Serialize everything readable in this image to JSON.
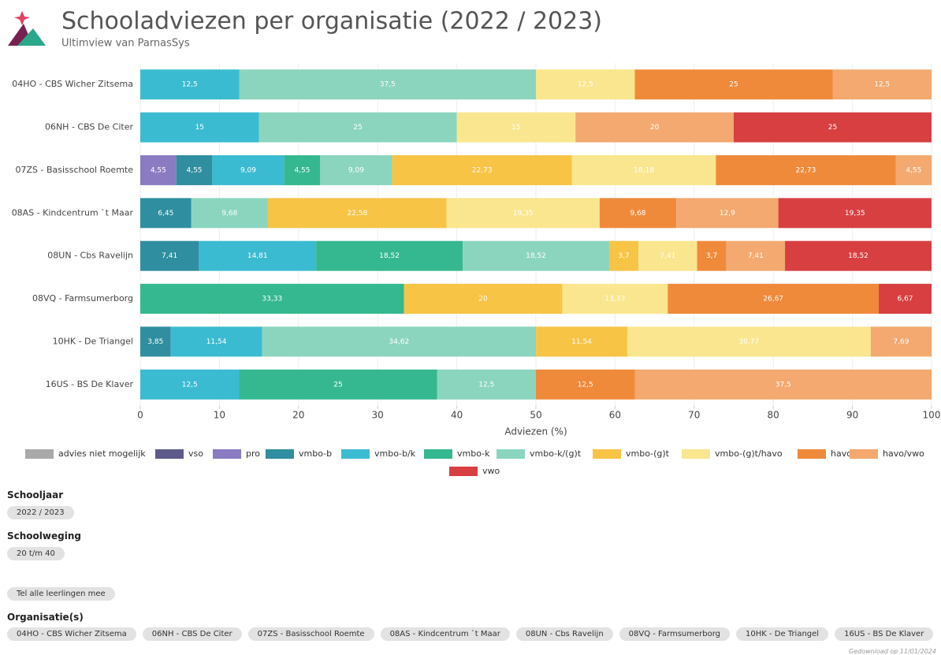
{
  "chart_data": {
    "type": "stacked-bar-horizontal",
    "title": "Schooladviezen per organisatie (2022 / 2023)",
    "subtitle": "Ultimview van ParnasSys",
    "x_label": "Adviezen (%)",
    "categories": [
      "04HO - CBS Wicher Zitsema",
      "06NH - CBS De Citer",
      "07ZS - Basisschool Roemte",
      "08AS - Kindcentrum `t Maar",
      "08UN - Cbs Ravelijn",
      "08VQ - Farmsumerborg",
      "10HK - De Triangel",
      "16US - BS De Klaver"
    ],
    "xlim": [
      0,
      100
    ],
    "xticks": [
      0,
      10,
      20,
      30,
      40,
      50,
      60,
      70,
      80,
      90,
      100
    ],
    "grid": true,
    "series": [
      {
        "name": "advies niet mogelijk",
        "color": "#a9a9a9",
        "values": [
          null,
          null,
          null,
          null,
          null,
          null,
          null,
          null
        ],
        "value_labels": [
          null,
          null,
          null,
          null,
          null,
          null,
          null,
          null
        ]
      },
      {
        "name": "vso",
        "color": "#5e5a8c",
        "values": [
          null,
          null,
          null,
          null,
          null,
          null,
          null,
          null
        ],
        "value_labels": [
          null,
          null,
          null,
          null,
          null,
          null,
          null,
          null
        ]
      },
      {
        "name": "pro",
        "color": "#8a7bc2",
        "values": [
          null,
          null,
          4.55,
          null,
          null,
          null,
          null,
          null
        ],
        "value_labels": [
          null,
          null,
          "4,55",
          null,
          null,
          null,
          null,
          null
        ]
      },
      {
        "name": "vmbo-b",
        "color": "#2f8e9f",
        "values": [
          null,
          null,
          4.55,
          6.45,
          7.41,
          null,
          3.85,
          null
        ],
        "value_labels": [
          null,
          null,
          "4,55",
          "6,45",
          "7,41",
          null,
          "3,85",
          null
        ]
      },
      {
        "name": "vmbo-b/k",
        "color": "#3bbbd1",
        "values": [
          12.5,
          15,
          9.09,
          null,
          14.81,
          null,
          11.54,
          12.5
        ],
        "value_labels": [
          "12,5",
          "15",
          "9,09",
          null,
          "14,81",
          null,
          "11,54",
          "12,5"
        ]
      },
      {
        "name": "vmbo-k",
        "color": "#35b88f",
        "values": [
          null,
          null,
          4.55,
          null,
          18.52,
          33.33,
          null,
          25
        ],
        "value_labels": [
          null,
          null,
          "4,55",
          null,
          "18,52",
          "33,33",
          null,
          "25"
        ]
      },
      {
        "name": "vmbo-k/(g)t",
        "color": "#8bd5bf",
        "values": [
          37.5,
          25,
          9.09,
          9.68,
          18.52,
          null,
          34.62,
          12.5
        ],
        "value_labels": [
          "37,5",
          "25",
          "9,09",
          "9,68",
          "18,52",
          null,
          "34,62",
          "12,5"
        ]
      },
      {
        "name": "vmbo-(g)t",
        "color": "#f7c445",
        "values": [
          null,
          null,
          22.73,
          22.58,
          3.7,
          20,
          11.54,
          null
        ],
        "value_labels": [
          null,
          null,
          "22,73",
          "22,58",
          "3,7",
          "20",
          "11,54",
          null
        ]
      },
      {
        "name": "vmbo-(g)t/havo",
        "color": "#f9e68e",
        "values": [
          12.5,
          15,
          18.18,
          19.35,
          7.41,
          13.33,
          30.77,
          null
        ],
        "value_labels": [
          "12,5",
          "15",
          "18,18",
          "19,35",
          "7,41",
          "13,33",
          "30,77",
          null
        ]
      },
      {
        "name": "havo",
        "color": "#f08a3b",
        "values": [
          25,
          null,
          22.73,
          9.68,
          3.7,
          26.67,
          null,
          12.5
        ],
        "value_labels": [
          "25",
          null,
          "22,73",
          "9,68",
          "3,7",
          "26,67",
          null,
          "12,5"
        ]
      },
      {
        "name": "havo/vwo",
        "color": "#f3a96f",
        "values": [
          12.5,
          20,
          4.55,
          12.9,
          7.41,
          null,
          7.69,
          37.5
        ],
        "value_labels": [
          "12,5",
          "20",
          "4,55",
          "12,9",
          "7,41",
          null,
          "7,69",
          "37,5"
        ]
      },
      {
        "name": "vwo",
        "color": "#d83f41",
        "values": [
          null,
          25,
          null,
          19.35,
          18.52,
          6.67,
          null,
          null
        ],
        "value_labels": [
          null,
          "25",
          null,
          "19,35",
          "18,52",
          "6,67",
          null,
          null
        ]
      }
    ]
  },
  "filters": {
    "schooljaar": {
      "label": "Schooljaar",
      "value": "2022 / 2023"
    },
    "schoolweging": {
      "label": "Schoolweging",
      "value": "20 t/m 40"
    },
    "toggle": "Tel alle leerlingen mee",
    "organisaties": {
      "label": "Organisatie(s)",
      "values": [
        "04HO - CBS Wicher Zitsema",
        "06NH - CBS De Citer",
        "07ZS - Basisschool Roemte",
        "08AS - Kindcentrum `t Maar",
        "08UN - Cbs Ravelijn",
        "08VQ - Farmsumerborg",
        "10HK - De Triangel",
        "16US - BS De Klaver"
      ]
    }
  },
  "footer": "Gedownload op 11/01/2024"
}
